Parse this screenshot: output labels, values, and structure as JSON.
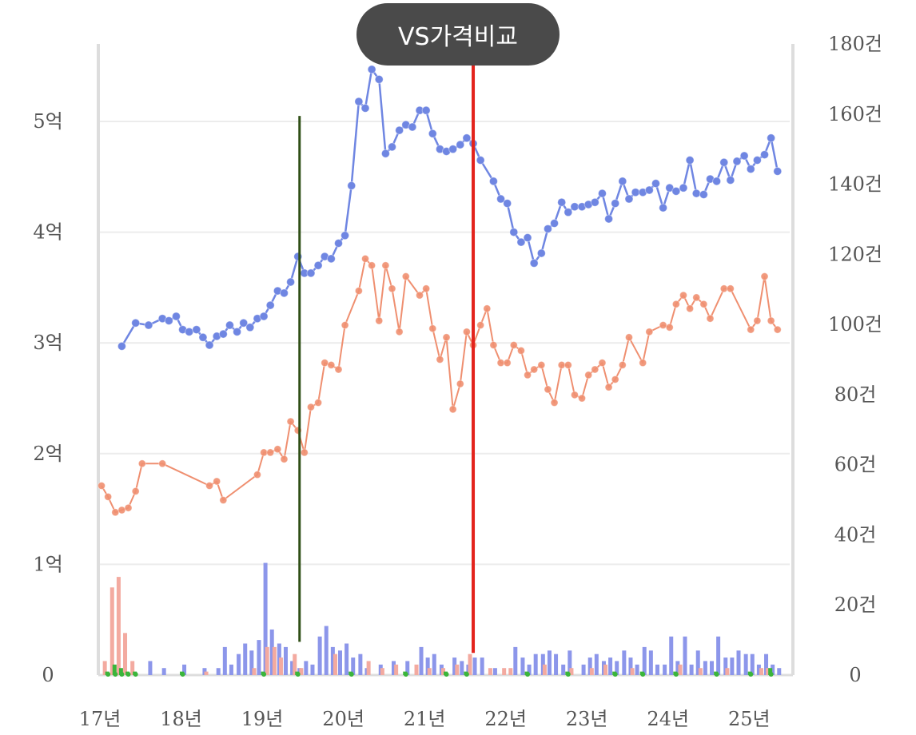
{
  "header": {
    "compare_button_label": "VS가격비교"
  },
  "colors": {
    "series_a": "#6f86e2",
    "series_b": "#ef8f70",
    "bar_a": "#8c96ea",
    "bar_b": "#f3aaa0",
    "bar_c": "#3bb53b",
    "marker_green": "#2f4f16",
    "marker_red": "#e3231c",
    "grid": "#ececec",
    "axis": "#dddddd"
  },
  "chart_data": {
    "type": "line",
    "x_tick_labels": [
      "17년",
      "18년",
      "19년",
      "20년",
      "21년",
      "22년",
      "23년",
      "24년",
      "25년"
    ],
    "x_range": [
      2016.98,
      2025.48
    ],
    "y_left": {
      "ticks": [
        "0",
        "1억",
        "2억",
        "3억",
        "4억",
        "5억"
      ],
      "range": [
        0,
        5.7
      ]
    },
    "y_right": {
      "ticks": [
        "0",
        "20건",
        "40건",
        "60건",
        "80건",
        "100건",
        "120건",
        "140건",
        "160건",
        "180건"
      ],
      "range": [
        0,
        180
      ]
    },
    "legend": "none",
    "grid": true,
    "vertical_markers": [
      {
        "color": "green",
        "x": 2019.44,
        "y_from": 0.3,
        "y_to": 5.05
      },
      {
        "color": "red",
        "x": 2021.58,
        "y_from": 0.2,
        "y_to": 5.65
      }
    ],
    "series": [
      {
        "axis": "left",
        "color": "blue",
        "points": [
          [
            2017.25,
            2.97
          ],
          [
            2017.42,
            3.18
          ],
          [
            2017.58,
            3.16
          ],
          [
            2017.75,
            3.22
          ],
          [
            2017.83,
            3.2
          ],
          [
            2017.92,
            3.24
          ],
          [
            2018.0,
            3.12
          ],
          [
            2018.08,
            3.1
          ],
          [
            2018.17,
            3.12
          ],
          [
            2018.25,
            3.05
          ],
          [
            2018.33,
            2.98
          ],
          [
            2018.42,
            3.06
          ],
          [
            2018.5,
            3.08
          ],
          [
            2018.58,
            3.16
          ],
          [
            2018.67,
            3.1
          ],
          [
            2018.75,
            3.18
          ],
          [
            2018.83,
            3.14
          ],
          [
            2018.92,
            3.22
          ],
          [
            2019.0,
            3.24
          ],
          [
            2019.08,
            3.34
          ],
          [
            2019.17,
            3.47
          ],
          [
            2019.25,
            3.45
          ],
          [
            2019.33,
            3.55
          ],
          [
            2019.42,
            3.78
          ],
          [
            2019.5,
            3.63
          ],
          [
            2019.58,
            3.63
          ],
          [
            2019.67,
            3.7
          ],
          [
            2019.75,
            3.78
          ],
          [
            2019.83,
            3.76
          ],
          [
            2019.92,
            3.9
          ],
          [
            2020.0,
            3.97
          ],
          [
            2020.08,
            4.42
          ],
          [
            2020.17,
            5.18
          ],
          [
            2020.25,
            5.12
          ],
          [
            2020.33,
            5.47
          ],
          [
            2020.42,
            5.38
          ],
          [
            2020.5,
            4.71
          ],
          [
            2020.58,
            4.77
          ],
          [
            2020.67,
            4.92
          ],
          [
            2020.75,
            4.97
          ],
          [
            2020.83,
            4.95
          ],
          [
            2020.92,
            5.1
          ],
          [
            2021.0,
            5.1
          ],
          [
            2021.08,
            4.89
          ],
          [
            2021.17,
            4.75
          ],
          [
            2021.25,
            4.73
          ],
          [
            2021.33,
            4.75
          ],
          [
            2021.42,
            4.79
          ],
          [
            2021.5,
            4.85
          ],
          [
            2021.58,
            4.8
          ],
          [
            2021.67,
            4.65
          ],
          [
            2021.83,
            4.46
          ],
          [
            2021.92,
            4.3
          ],
          [
            2022.0,
            4.26
          ],
          [
            2022.08,
            4.0
          ],
          [
            2022.17,
            3.91
          ],
          [
            2022.25,
            3.95
          ],
          [
            2022.33,
            3.72
          ],
          [
            2022.42,
            3.81
          ],
          [
            2022.5,
            4.03
          ],
          [
            2022.58,
            4.08
          ],
          [
            2022.67,
            4.27
          ],
          [
            2022.75,
            4.18
          ],
          [
            2022.83,
            4.23
          ],
          [
            2022.92,
            4.23
          ],
          [
            2023.0,
            4.25
          ],
          [
            2023.08,
            4.27
          ],
          [
            2023.17,
            4.35
          ],
          [
            2023.25,
            4.12
          ],
          [
            2023.33,
            4.26
          ],
          [
            2023.42,
            4.46
          ],
          [
            2023.5,
            4.3
          ],
          [
            2023.58,
            4.36
          ],
          [
            2023.67,
            4.36
          ],
          [
            2023.75,
            4.38
          ],
          [
            2023.83,
            4.44
          ],
          [
            2023.92,
            4.22
          ],
          [
            2024.0,
            4.4
          ],
          [
            2024.08,
            4.37
          ],
          [
            2024.17,
            4.4
          ],
          [
            2024.25,
            4.65
          ],
          [
            2024.33,
            4.35
          ],
          [
            2024.42,
            4.34
          ],
          [
            2024.5,
            4.48
          ],
          [
            2024.58,
            4.46
          ],
          [
            2024.67,
            4.63
          ],
          [
            2024.75,
            4.47
          ],
          [
            2024.83,
            4.64
          ],
          [
            2024.92,
            4.69
          ],
          [
            2025.0,
            4.57
          ],
          [
            2025.08,
            4.65
          ],
          [
            2025.17,
            4.7
          ],
          [
            2025.25,
            4.85
          ],
          [
            2025.33,
            4.55
          ]
        ]
      },
      {
        "axis": "left",
        "color": "orange",
        "points": [
          [
            2017.0,
            1.71
          ],
          [
            2017.08,
            1.61
          ],
          [
            2017.17,
            1.47
          ],
          [
            2017.25,
            1.49
          ],
          [
            2017.33,
            1.51
          ],
          [
            2017.42,
            1.66
          ],
          [
            2017.5,
            1.91
          ],
          [
            2017.75,
            1.91
          ],
          [
            2018.33,
            1.71
          ],
          [
            2018.42,
            1.75
          ],
          [
            2018.5,
            1.58
          ],
          [
            2018.92,
            1.81
          ],
          [
            2019.0,
            2.01
          ],
          [
            2019.08,
            2.01
          ],
          [
            2019.17,
            2.04
          ],
          [
            2019.25,
            1.95
          ],
          [
            2019.33,
            2.29
          ],
          [
            2019.42,
            2.21
          ],
          [
            2019.5,
            2.01
          ],
          [
            2019.58,
            2.42
          ],
          [
            2019.67,
            2.46
          ],
          [
            2019.75,
            2.82
          ],
          [
            2019.83,
            2.8
          ],
          [
            2019.92,
            2.76
          ],
          [
            2020.0,
            3.16
          ],
          [
            2020.17,
            3.47
          ],
          [
            2020.25,
            3.76
          ],
          [
            2020.33,
            3.7
          ],
          [
            2020.42,
            3.2
          ],
          [
            2020.5,
            3.7
          ],
          [
            2020.58,
            3.49
          ],
          [
            2020.67,
            3.1
          ],
          [
            2020.75,
            3.6
          ],
          [
            2020.92,
            3.43
          ],
          [
            2021.0,
            3.49
          ],
          [
            2021.08,
            3.13
          ],
          [
            2021.17,
            2.85
          ],
          [
            2021.25,
            3.05
          ],
          [
            2021.33,
            2.4
          ],
          [
            2021.42,
            2.63
          ],
          [
            2021.5,
            3.1
          ],
          [
            2021.58,
            2.98
          ],
          [
            2021.67,
            3.16
          ],
          [
            2021.75,
            3.31
          ],
          [
            2021.83,
            2.98
          ],
          [
            2021.92,
            2.82
          ],
          [
            2022.0,
            2.82
          ],
          [
            2022.08,
            2.98
          ],
          [
            2022.17,
            2.93
          ],
          [
            2022.25,
            2.71
          ],
          [
            2022.33,
            2.76
          ],
          [
            2022.42,
            2.8
          ],
          [
            2022.5,
            2.58
          ],
          [
            2022.58,
            2.46
          ],
          [
            2022.67,
            2.8
          ],
          [
            2022.75,
            2.8
          ],
          [
            2022.83,
            2.53
          ],
          [
            2022.92,
            2.5
          ],
          [
            2023.0,
            2.71
          ],
          [
            2023.08,
            2.76
          ],
          [
            2023.17,
            2.82
          ],
          [
            2023.25,
            2.6
          ],
          [
            2023.33,
            2.67
          ],
          [
            2023.42,
            2.8
          ],
          [
            2023.5,
            3.05
          ],
          [
            2023.67,
            2.82
          ],
          [
            2023.75,
            3.1
          ],
          [
            2023.92,
            3.16
          ],
          [
            2024.0,
            3.14
          ],
          [
            2024.08,
            3.35
          ],
          [
            2024.17,
            3.43
          ],
          [
            2024.25,
            3.31
          ],
          [
            2024.33,
            3.41
          ],
          [
            2024.42,
            3.35
          ],
          [
            2024.5,
            3.22
          ],
          [
            2024.67,
            3.49
          ],
          [
            2024.75,
            3.49
          ],
          [
            2025.0,
            3.12
          ],
          [
            2025.08,
            3.2
          ],
          [
            2025.17,
            3.6
          ],
          [
            2025.25,
            3.2
          ],
          [
            2025.33,
            3.12
          ]
        ]
      }
    ],
    "volume_bars": {
      "axis": "right",
      "blue": [
        [
          2017.58,
          4
        ],
        [
          2017.75,
          2
        ],
        [
          2018.0,
          3
        ],
        [
          2018.25,
          2
        ],
        [
          2018.42,
          2
        ],
        [
          2018.5,
          8
        ],
        [
          2018.58,
          3
        ],
        [
          2018.67,
          6
        ],
        [
          2018.75,
          9
        ],
        [
          2018.83,
          7
        ],
        [
          2018.92,
          10
        ],
        [
          2019.0,
          32
        ],
        [
          2019.08,
          13
        ],
        [
          2019.17,
          9
        ],
        [
          2019.25,
          8
        ],
        [
          2019.33,
          4
        ],
        [
          2019.42,
          2
        ],
        [
          2019.5,
          4
        ],
        [
          2019.58,
          3
        ],
        [
          2019.67,
          11
        ],
        [
          2019.75,
          14
        ],
        [
          2019.83,
          8
        ],
        [
          2019.92,
          7
        ],
        [
          2020.0,
          9
        ],
        [
          2020.08,
          5
        ],
        [
          2020.17,
          6
        ],
        [
          2020.25,
          2
        ],
        [
          2020.42,
          3
        ],
        [
          2020.58,
          4
        ],
        [
          2020.75,
          4
        ],
        [
          2020.92,
          8
        ],
        [
          2021.0,
          5
        ],
        [
          2021.08,
          6
        ],
        [
          2021.17,
          3
        ],
        [
          2021.33,
          5
        ],
        [
          2021.42,
          4
        ],
        [
          2021.5,
          3
        ],
        [
          2021.58,
          5
        ],
        [
          2021.67,
          5
        ],
        [
          2021.83,
          2
        ],
        [
          2022.08,
          8
        ],
        [
          2022.17,
          5
        ],
        [
          2022.25,
          3
        ],
        [
          2022.33,
          6
        ],
        [
          2022.42,
          6
        ],
        [
          2022.5,
          7
        ],
        [
          2022.58,
          6
        ],
        [
          2022.67,
          3
        ],
        [
          2022.75,
          7
        ],
        [
          2022.92,
          3
        ],
        [
          2023.0,
          5
        ],
        [
          2023.08,
          6
        ],
        [
          2023.17,
          4
        ],
        [
          2023.25,
          5
        ],
        [
          2023.33,
          4
        ],
        [
          2023.42,
          7
        ],
        [
          2023.5,
          5
        ],
        [
          2023.58,
          3
        ],
        [
          2023.67,
          8
        ],
        [
          2023.75,
          7
        ],
        [
          2023.83,
          3
        ],
        [
          2023.92,
          3
        ],
        [
          2024.0,
          11
        ],
        [
          2024.08,
          4
        ],
        [
          2024.17,
          11
        ],
        [
          2024.25,
          3
        ],
        [
          2024.33,
          7
        ],
        [
          2024.42,
          4
        ],
        [
          2024.5,
          4
        ],
        [
          2024.58,
          11
        ],
        [
          2024.67,
          5
        ],
        [
          2024.75,
          5
        ],
        [
          2024.83,
          7
        ],
        [
          2024.92,
          6
        ],
        [
          2025.0,
          6
        ],
        [
          2025.08,
          3
        ],
        [
          2025.17,
          6
        ],
        [
          2025.25,
          3
        ],
        [
          2025.33,
          2
        ]
      ],
      "orange": [
        [
          2017.08,
          4
        ],
        [
          2017.17,
          25
        ],
        [
          2017.25,
          28
        ],
        [
          2017.33,
          12
        ],
        [
          2017.42,
          4
        ],
        [
          2018.33,
          1
        ],
        [
          2018.92,
          2
        ],
        [
          2019.08,
          8
        ],
        [
          2019.17,
          8
        ],
        [
          2019.25,
          5
        ],
        [
          2019.42,
          6
        ],
        [
          2019.5,
          2
        ],
        [
          2019.92,
          6
        ],
        [
          2020.33,
          4
        ],
        [
          2020.5,
          2
        ],
        [
          2020.67,
          3
        ],
        [
          2020.92,
          3
        ],
        [
          2021.08,
          2
        ],
        [
          2021.25,
          2
        ],
        [
          2021.42,
          3
        ],
        [
          2021.58,
          6
        ],
        [
          2021.83,
          2
        ],
        [
          2022.0,
          2
        ],
        [
          2022.08,
          2
        ],
        [
          2022.5,
          3
        ],
        [
          2022.83,
          2
        ],
        [
          2023.08,
          2
        ],
        [
          2023.25,
          3
        ],
        [
          2023.58,
          2
        ],
        [
          2024.17,
          3
        ],
        [
          2024.42,
          2
        ],
        [
          2024.75,
          2
        ],
        [
          2025.17,
          2
        ],
        [
          2025.25,
          2
        ]
      ],
      "green": [
        [
          2017.08,
          1
        ],
        [
          2017.17,
          3
        ],
        [
          2017.25,
          2
        ],
        [
          2017.33,
          1
        ],
        [
          2017.42,
          1
        ],
        [
          2018.0,
          1
        ],
        [
          2019.0,
          1
        ],
        [
          2019.42,
          1
        ],
        [
          2020.08,
          1
        ],
        [
          2020.75,
          1
        ],
        [
          2021.25,
          1
        ],
        [
          2021.5,
          1
        ],
        [
          2022.25,
          1
        ],
        [
          2022.75,
          1
        ],
        [
          2023.33,
          1
        ],
        [
          2023.67,
          1
        ],
        [
          2024.08,
          1
        ],
        [
          2024.58,
          1
        ],
        [
          2025.0,
          1
        ],
        [
          2025.25,
          2
        ]
      ]
    }
  }
}
